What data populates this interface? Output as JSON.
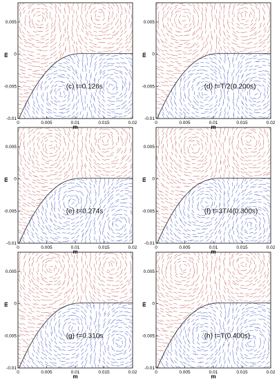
{
  "chart_data": [
    {
      "type": "scatter",
      "panel": "c",
      "label": "(c)  t=0.126s",
      "x_ticks": [
        "0",
        "0.005",
        "0.01",
        "0.015",
        "0.02"
      ],
      "y_ticks": [
        "0.005",
        "0",
        "-0.005",
        "-0.01"
      ],
      "xlabel": "m",
      "ylabel": "m",
      "xlim": [
        0,
        0.02
      ],
      "ylim": [
        -0.01,
        0.008
      ],
      "series": [
        {
          "color": "#c0504d"
        },
        {
          "color": "#3b4cc0"
        }
      ],
      "vortices_upper": [
        [
          0.004,
          0.0055,
          1
        ],
        [
          0.014,
          0.006,
          -1
        ]
      ],
      "vortices_lower": [
        [
          0.008,
          -0.006,
          1
        ],
        [
          0.016,
          -0.005,
          -1
        ]
      ]
    },
    {
      "type": "scatter",
      "panel": "d",
      "label": "(d)  t=T/2(0.200s)",
      "x_ticks": [
        "0",
        "0.005",
        "0.01",
        "0.015",
        "0.02"
      ],
      "y_ticks": [
        "0.005",
        "0",
        "-0.005",
        "-0.01"
      ],
      "xlabel": "m",
      "ylabel": "m",
      "xlim": [
        0,
        0.02
      ],
      "ylim": [
        -0.01,
        0.008
      ],
      "series": [
        {
          "color": "#c0504d"
        },
        {
          "color": "#3b4cc0"
        }
      ],
      "vortices_upper": [
        [
          0.005,
          0.0055,
          1
        ],
        [
          0.015,
          0.006,
          -1
        ]
      ],
      "vortices_lower": [
        [
          0.009,
          -0.006,
          1
        ],
        [
          0.017,
          -0.006,
          -1
        ]
      ]
    },
    {
      "type": "scatter",
      "panel": "e",
      "label": "(e)  t=0.274s",
      "x_ticks": [
        "0",
        "0.005",
        "0.01",
        "0.015",
        "0.02"
      ],
      "y_ticks": [
        "0.005",
        "0",
        "-0.005",
        "-0.01"
      ],
      "xlabel": "m",
      "ylabel": "m",
      "xlim": [
        0,
        0.02
      ],
      "ylim": [
        -0.01,
        0.008
      ],
      "series": [
        {
          "color": "#c0504d"
        },
        {
          "color": "#3b4cc0"
        }
      ],
      "vortices_upper": [
        [
          0.006,
          0.005,
          -1
        ],
        [
          0.015,
          0.006,
          1
        ]
      ],
      "vortices_lower": [
        [
          0.01,
          -0.004,
          1
        ],
        [
          0.017,
          -0.007,
          -1
        ]
      ]
    },
    {
      "type": "scatter",
      "panel": "f",
      "label": "(f)  t=3T/4(0.300s)",
      "x_ticks": [
        "0",
        "0.005",
        "0.01",
        "0.015",
        "0.02"
      ],
      "y_ticks": [
        "0.005",
        "0",
        "-0.005",
        "-0.01"
      ],
      "xlabel": "m",
      "ylabel": "m",
      "xlim": [
        0,
        0.02
      ],
      "ylim": [
        -0.01,
        0.008
      ],
      "series": [
        {
          "color": "#c0504d"
        },
        {
          "color": "#3b4cc0"
        }
      ],
      "vortices_upper": [
        [
          0.007,
          0.005,
          -1
        ],
        [
          0.016,
          0.006,
          1
        ]
      ],
      "vortices_lower": [
        [
          0.009,
          -0.004,
          1
        ],
        [
          0.016,
          -0.007,
          -1
        ]
      ]
    },
    {
      "type": "scatter",
      "panel": "g",
      "label": "(g)  t=0.310s",
      "x_ticks": [
        "0",
        "0.005",
        "0.01",
        "0.015",
        "0.02"
      ],
      "y_ticks": [
        "0.005",
        "0",
        "-0.005",
        "-0.01"
      ],
      "xlabel": "m",
      "ylabel": "m",
      "xlim": [
        0,
        0.02
      ],
      "ylim": [
        -0.01,
        0.008
      ],
      "series": [
        {
          "color": "#c0504d"
        },
        {
          "color": "#3b4cc0"
        }
      ],
      "vortices_upper": [
        [
          0.006,
          0.0055,
          -1
        ],
        [
          0.016,
          0.006,
          1
        ]
      ],
      "vortices_lower": [
        [
          0.01,
          -0.004,
          1
        ],
        [
          0.017,
          -0.006,
          -1
        ]
      ]
    },
    {
      "type": "scatter",
      "panel": "h",
      "label": "(h)  t=T(0.400s)",
      "x_ticks": [
        "0",
        "0.005",
        "0.01",
        "0.015",
        "0.02"
      ],
      "y_ticks": [
        "0.005",
        "0",
        "-0.005",
        "-0.01"
      ],
      "xlabel": "m",
      "ylabel": "m",
      "xlim": [
        0,
        0.02
      ],
      "ylim": [
        -0.01,
        0.008
      ],
      "series": [
        {
          "color": "#c0504d"
        },
        {
          "color": "#3b4cc0"
        }
      ],
      "vortices_upper": [
        [
          0.005,
          0.0055,
          1
        ],
        [
          0.015,
          0.006,
          -1
        ]
      ],
      "vortices_lower": [
        [
          0.009,
          -0.005,
          1
        ],
        [
          0.016,
          -0.006,
          -1
        ]
      ]
    }
  ]
}
